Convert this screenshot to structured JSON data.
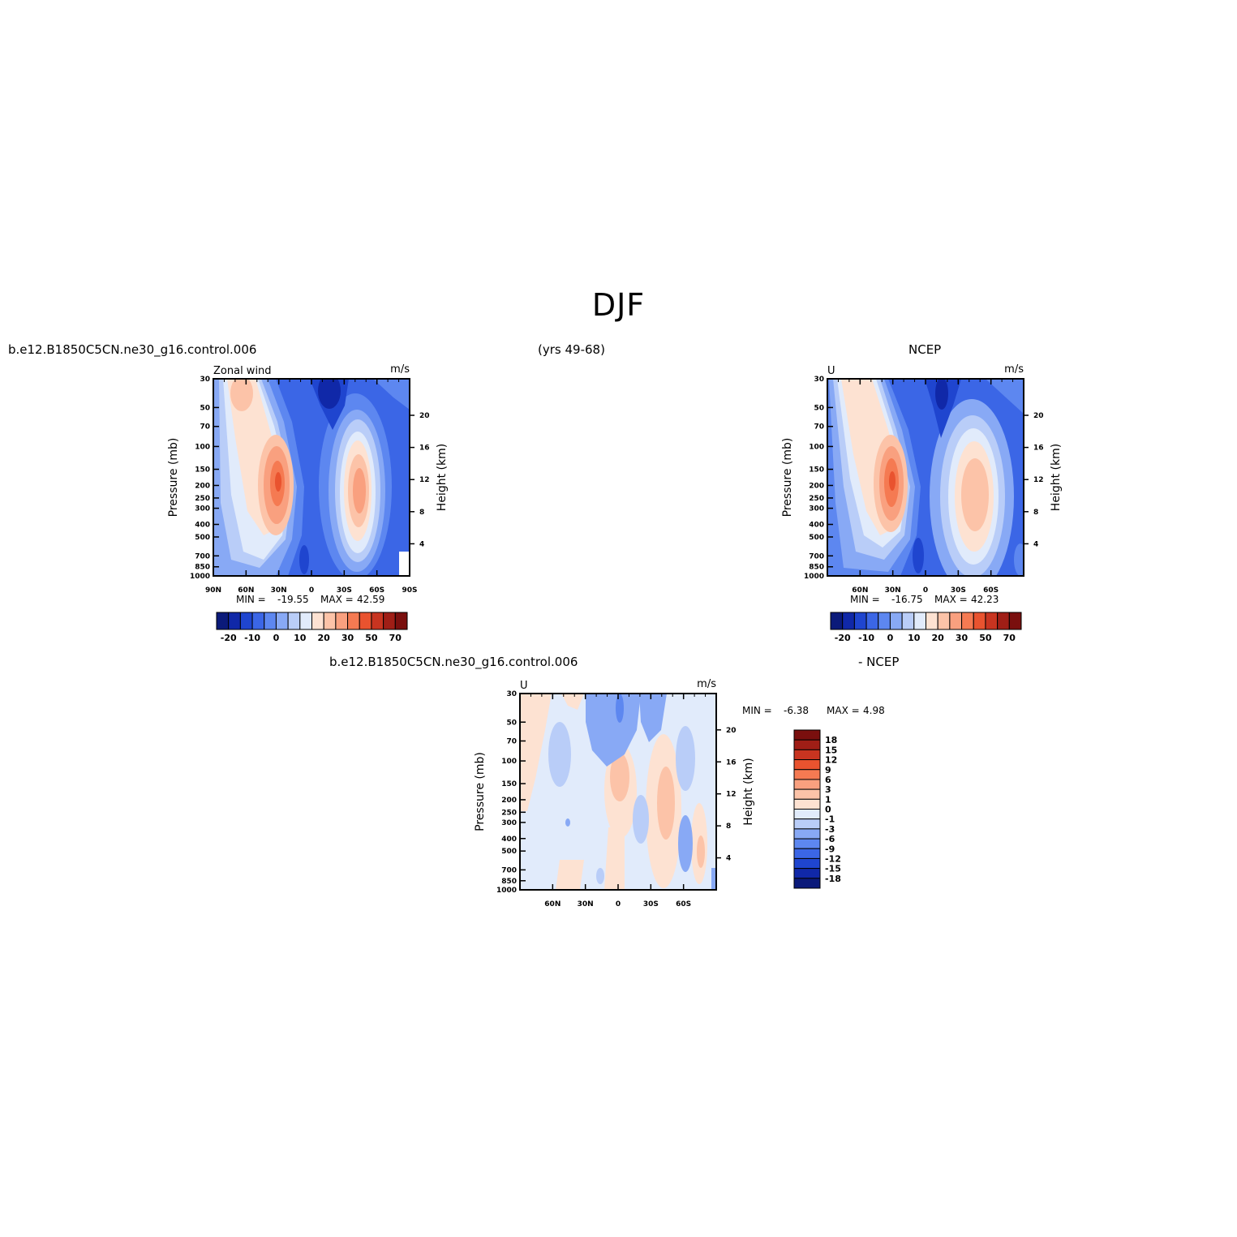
{
  "figure": {
    "title": "DJF",
    "header_left": "b.e12.B1850C5CN.ne30_g16.control.006",
    "header_center": "(yrs 49-68)",
    "header_right": "NCEP",
    "header_bottom_left": "b.e12.B1850C5CN.ne30_g16.control.006",
    "header_bottom_right": "- NCEP"
  },
  "chart_data": [
    {
      "type": "heatmap",
      "panel": "model",
      "left_label": "Zonal wind",
      "units": "m/s",
      "ylabel": "Pressure (mb)",
      "ylabel_right": "Height (km)",
      "x_ticks": [
        "90N",
        "60N",
        "30N",
        "0",
        "30S",
        "60S",
        "90S"
      ],
      "y_ticks": [
        "30",
        "50",
        "70",
        "100",
        "150",
        "200",
        "250",
        "300",
        "400",
        "500",
        "700",
        "850",
        "1000"
      ],
      "y_ticks_right": [
        "20",
        "16",
        "12",
        "8",
        "4"
      ],
      "min_label": "MIN =",
      "min": "-19.55",
      "max_label": "MAX =",
      "max": "42.59",
      "colorbar_labels": [
        "-20",
        "-10",
        "0",
        "10",
        "20",
        "30",
        "50",
        "70"
      ],
      "features": [
        {
          "lat": 32,
          "p": 200,
          "value": 42.59
        },
        {
          "lat": -45,
          "p": 200,
          "value": 35
        },
        {
          "lat": 60,
          "p": 35,
          "value": 12
        },
        {
          "lat": -18,
          "p": 35,
          "value": -19.55
        }
      ]
    },
    {
      "type": "heatmap",
      "panel": "obs",
      "left_label": "U",
      "units": "m/s",
      "ylabel": "Pressure (mb)",
      "ylabel_right": "Height (km)",
      "x_ticks": [
        "60N",
        "30N",
        "0",
        "30S",
        "60S"
      ],
      "y_ticks": [
        "30",
        "50",
        "70",
        "100",
        "150",
        "200",
        "250",
        "300",
        "400",
        "500",
        "700",
        "850",
        "1000"
      ],
      "y_ticks_right": [
        "20",
        "16",
        "12",
        "8",
        "4"
      ],
      "min_label": "MIN =",
      "min": "-16.75",
      "max_label": "MAX =",
      "max": "42.23",
      "colorbar_labels": [
        "-20",
        "-10",
        "0",
        "10",
        "20",
        "30",
        "50",
        "70"
      ],
      "features": [
        {
          "lat": 30,
          "p": 200,
          "value": 42.23
        },
        {
          "lat": -45,
          "p": 250,
          "value": 28
        },
        {
          "lat": 60,
          "p": 40,
          "value": 12
        },
        {
          "lat": -15,
          "p": 35,
          "value": -16.75
        }
      ]
    },
    {
      "type": "heatmap",
      "panel": "diff",
      "left_label": "U",
      "units": "m/s",
      "ylabel": "Pressure (mb)",
      "ylabel_right": "Height (km)",
      "x_ticks": [
        "60N",
        "30N",
        "0",
        "30S",
        "60S"
      ],
      "y_ticks": [
        "30",
        "50",
        "70",
        "100",
        "150",
        "200",
        "250",
        "300",
        "400",
        "500",
        "700",
        "850",
        "1000"
      ],
      "y_ticks_right": [
        "20",
        "16",
        "12",
        "8",
        "4"
      ],
      "min_label": "MIN =",
      "min": "-6.38",
      "max_label": "MAX =",
      "max": "4.98",
      "colorbar_labels": [
        "18",
        "15",
        "12",
        "9",
        "6",
        "3",
        "1",
        "0",
        "-1",
        "-3",
        "-6",
        "-9",
        "-12",
        "-15",
        "-18"
      ],
      "features": [
        {
          "lat": -10,
          "p": 150,
          "value": 4.98
        },
        {
          "lat": -40,
          "p": 200,
          "value": 4
        },
        {
          "lat": 0,
          "p": 40,
          "value": -6.38
        },
        {
          "lat": -55,
          "p": 400,
          "value": -3
        }
      ]
    }
  ],
  "colors": {
    "top_scale": [
      "#0b1a7a",
      "#1028a8",
      "#1f45cf",
      "#3b66e6",
      "#5d87f0",
      "#88a9f5",
      "#b9cdf8",
      "#e1ebfb",
      "#fde2d2",
      "#fcc3a8",
      "#f9a07f",
      "#f57a52",
      "#e9532f",
      "#c83420",
      "#a01e16",
      "#7a0f0e"
    ],
    "diff_scale": [
      "#7a0f0e",
      "#a01e16",
      "#c83420",
      "#e9532f",
      "#f57a52",
      "#f9a07f",
      "#fcc3a8",
      "#fde2d2",
      "#e1ebfb",
      "#b9cdf8",
      "#88a9f5",
      "#5d87f0",
      "#3b66e6",
      "#1f45cf",
      "#1028a8",
      "#0b1a7a"
    ]
  }
}
